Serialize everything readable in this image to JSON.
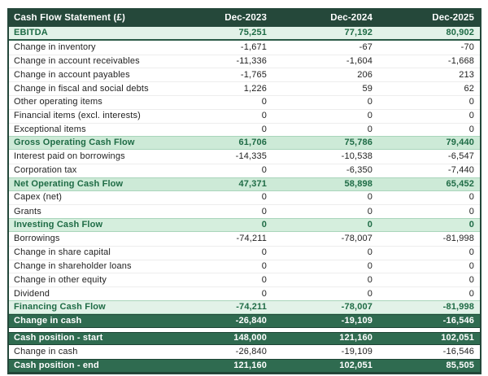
{
  "table": {
    "title": "Cash Flow Statement (£)",
    "columns": [
      "Dec-2023",
      "Dec-2024",
      "Dec-2025"
    ],
    "rows": [
      {
        "label": "EBITDA",
        "values": [
          "75,251",
          "77,192",
          "80,902"
        ],
        "style": "subtotal-light ebitda"
      },
      {
        "label": "Change in inventory",
        "values": [
          "-1,671",
          "-67",
          "-70"
        ],
        "style": "normal"
      },
      {
        "label": "Change in account receivables",
        "values": [
          "-11,336",
          "-1,604",
          "-1,668"
        ],
        "style": "normal"
      },
      {
        "label": "Change in account payables",
        "values": [
          "-1,765",
          "206",
          "213"
        ],
        "style": "normal"
      },
      {
        "label": "Change in fiscal and social debts",
        "values": [
          "1,226",
          "59",
          "62"
        ],
        "style": "normal"
      },
      {
        "label": "Other operating items",
        "values": [
          "0",
          "0",
          "0"
        ],
        "style": "normal"
      },
      {
        "label": "Financial items (excl. interests)",
        "values": [
          "0",
          "0",
          "0"
        ],
        "style": "normal"
      },
      {
        "label": "Exceptional items",
        "values": [
          "0",
          "0",
          "0"
        ],
        "style": "normal"
      },
      {
        "label": "Gross Operating Cash Flow",
        "values": [
          "61,706",
          "75,786",
          "79,440"
        ],
        "style": "subtotal"
      },
      {
        "label": "Interest paid on borrowings",
        "values": [
          "-14,335",
          "-10,538",
          "-6,547"
        ],
        "style": "normal"
      },
      {
        "label": "Corporation tax",
        "values": [
          "0",
          "-6,350",
          "-7,440"
        ],
        "style": "normal"
      },
      {
        "label": "Net Operating Cash Flow",
        "values": [
          "47,371",
          "58,898",
          "65,452"
        ],
        "style": "subtotal"
      },
      {
        "label": "Capex (net)",
        "values": [
          "0",
          "0",
          "0"
        ],
        "style": "normal"
      },
      {
        "label": "Grants",
        "values": [
          "0",
          "0",
          "0"
        ],
        "style": "normal"
      },
      {
        "label": "Investing Cash Flow",
        "values": [
          "0",
          "0",
          "0"
        ],
        "style": "subtotal-mid"
      },
      {
        "label": "Borrowings",
        "values": [
          "-74,211",
          "-78,007",
          "-81,998"
        ],
        "style": "normal"
      },
      {
        "label": "Change in share capital",
        "values": [
          "0",
          "0",
          "0"
        ],
        "style": "normal"
      },
      {
        "label": "Change in shareholder loans",
        "values": [
          "0",
          "0",
          "0"
        ],
        "style": "normal"
      },
      {
        "label": "Change in other equity",
        "values": [
          "0",
          "0",
          "0"
        ],
        "style": "normal"
      },
      {
        "label": "Dividend",
        "values": [
          "0",
          "0",
          "0"
        ],
        "style": "normal"
      },
      {
        "label": "Financing Cash Flow",
        "values": [
          "-74,211",
          "-78,007",
          "-81,998"
        ],
        "style": "subtotal-light"
      },
      {
        "label": "Change in cash",
        "values": [
          "-26,840",
          "-19,109",
          "-16,546"
        ],
        "style": "dark"
      },
      {
        "style": "spacer"
      },
      {
        "label": "Cash position - start",
        "values": [
          "148,000",
          "121,160",
          "102,051"
        ],
        "style": "dark"
      },
      {
        "label": "Change in cash",
        "values": [
          "-26,840",
          "-19,109",
          "-16,546"
        ],
        "style": "normal"
      },
      {
        "label": "Cash position - end",
        "values": [
          "121,160",
          "102,051",
          "85,505"
        ],
        "style": "dark"
      }
    ],
    "colors": {
      "header_bg": "#25483a",
      "dark_row_bg": "#2f6b50",
      "subtotal_bg": "#cdead7",
      "subtotal_light_bg": "#e2f2e8",
      "subtotal_text": "#1e6b45",
      "table_border": "#24473a"
    }
  }
}
